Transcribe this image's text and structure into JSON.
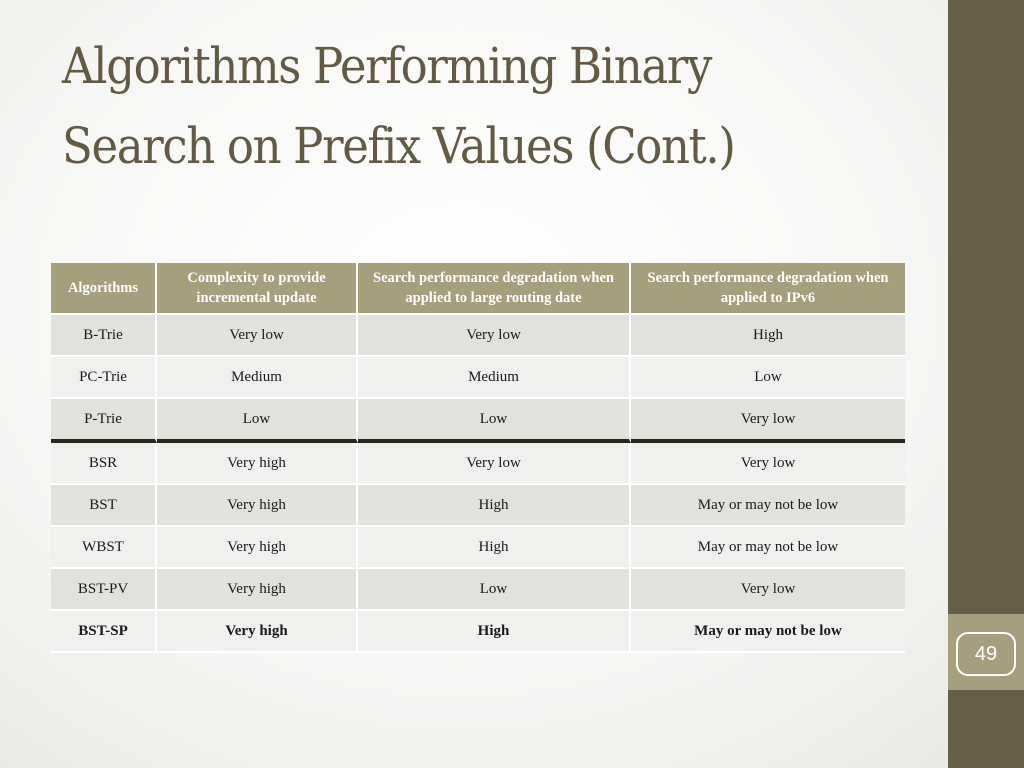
{
  "slide": {
    "title": "Algorithms Performing Binary Search on Prefix Values (Cont.)",
    "page_number": "49"
  },
  "colors": {
    "sidebar": "#675e47",
    "header_fill": "#a59f7e",
    "title_text": "#625a44",
    "row_dark": "#e1e1de",
    "row_light": "#f0f0ee",
    "separator": "#2a2619"
  },
  "table": {
    "headers": [
      "Algorithms",
      "Complexity to provide incremental update",
      "Search performance degradation when applied to large routing date",
      "Search performance degradation when applied to IPv6"
    ],
    "rows": [
      [
        "B-Trie",
        "Very low",
        "Very low",
        "High"
      ],
      [
        "PC-Trie",
        "Medium",
        "Medium",
        "Low"
      ],
      [
        "P-Trie",
        "Low",
        "Low",
        "Very low"
      ],
      [
        "BSR",
        "Very high",
        "Very low",
        "Very low"
      ],
      [
        "BST",
        "Very high",
        "High",
        "May or may not be low"
      ],
      [
        "WBST",
        "Very high",
        "High",
        "May or may not be low"
      ],
      [
        "BST-PV",
        "Very high",
        "Low",
        "Very low"
      ],
      [
        "BST-SP",
        "Very high",
        "High",
        "May or may not be low"
      ]
    ]
  }
}
